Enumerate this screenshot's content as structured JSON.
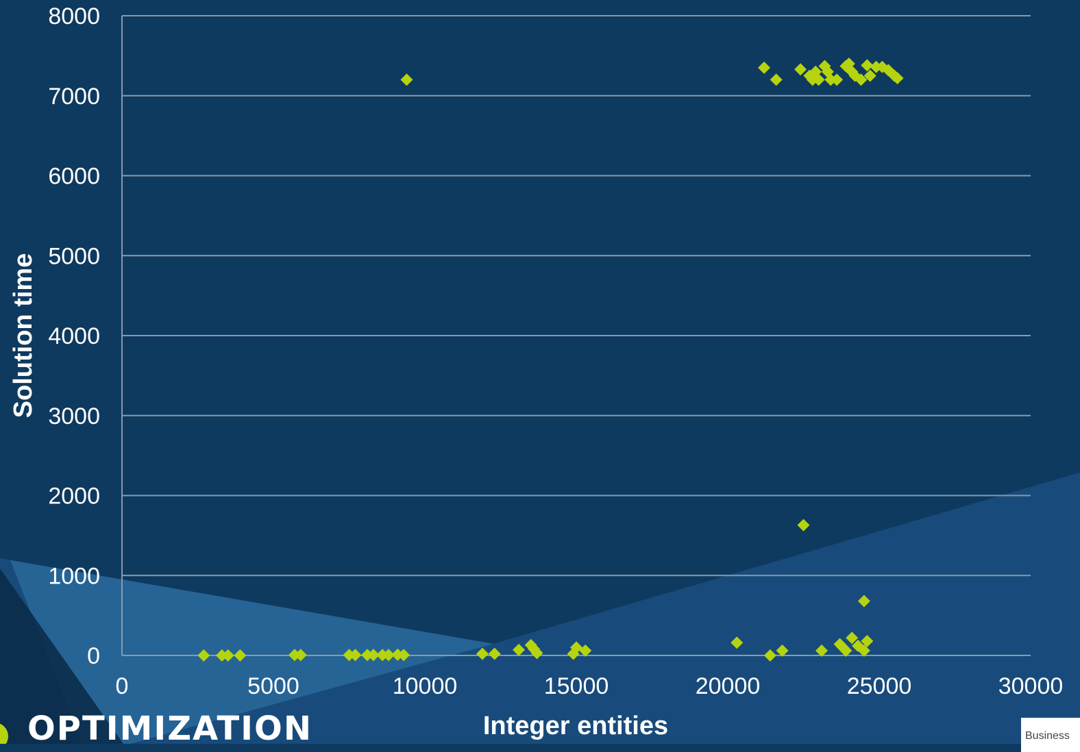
{
  "colors": {
    "background": "#0f3a5f",
    "marker": "#b5d40f",
    "grid": "#8a9aab",
    "text": "#ffffff"
  },
  "brand": {
    "text": "OPTIMIZATION"
  },
  "badge": {
    "text": "Business"
  },
  "chart_data": {
    "type": "scatter",
    "xlabel": "Integer entities",
    "ylabel": "Solution time",
    "xlim": [
      0,
      30000
    ],
    "ylim": [
      0,
      8000
    ],
    "xticks": [
      0,
      5000,
      10000,
      15000,
      20000,
      25000,
      30000
    ],
    "yticks": [
      0,
      1000,
      2000,
      3000,
      4000,
      5000,
      6000,
      7000,
      8000
    ],
    "grid": "horizontal",
    "marker": "diamond",
    "points": [
      [
        2700,
        0
      ],
      [
        3300,
        0
      ],
      [
        3500,
        0
      ],
      [
        3900,
        0
      ],
      [
        5700,
        5
      ],
      [
        5900,
        5
      ],
      [
        7500,
        5
      ],
      [
        7700,
        5
      ],
      [
        8100,
        5
      ],
      [
        8300,
        5
      ],
      [
        8600,
        5
      ],
      [
        8800,
        5
      ],
      [
        9100,
        10
      ],
      [
        9300,
        5
      ],
      [
        9400,
        7200
      ],
      [
        11900,
        20
      ],
      [
        12300,
        20
      ],
      [
        13100,
        70
      ],
      [
        13500,
        130
      ],
      [
        13600,
        80
      ],
      [
        13700,
        30
      ],
      [
        14900,
        20
      ],
      [
        15000,
        100
      ],
      [
        15300,
        60
      ],
      [
        20300,
        160
      ],
      [
        21200,
        7350
      ],
      [
        21400,
        0
      ],
      [
        21600,
        7200
      ],
      [
        21800,
        60
      ],
      [
        22400,
        7330
      ],
      [
        22500,
        1630
      ],
      [
        22700,
        7250
      ],
      [
        22800,
        7200
      ],
      [
        22900,
        7300
      ],
      [
        23000,
        7200
      ],
      [
        23100,
        60
      ],
      [
        23200,
        7370
      ],
      [
        23300,
        7300
      ],
      [
        23400,
        7200
      ],
      [
        23600,
        7200
      ],
      [
        23700,
        140
      ],
      [
        23800,
        100
      ],
      [
        23900,
        7370
      ],
      [
        23900,
        60
      ],
      [
        24000,
        7400
      ],
      [
        24100,
        220
      ],
      [
        24100,
        7300
      ],
      [
        24200,
        7250
      ],
      [
        24300,
        120
      ],
      [
        24400,
        7200
      ],
      [
        24500,
        60
      ],
      [
        24500,
        680
      ],
      [
        24600,
        180
      ],
      [
        24600,
        7380
      ],
      [
        24700,
        7250
      ],
      [
        24900,
        7360
      ],
      [
        25100,
        7360
      ],
      [
        25300,
        7320
      ],
      [
        25500,
        7250
      ],
      [
        25600,
        7220
      ]
    ]
  }
}
